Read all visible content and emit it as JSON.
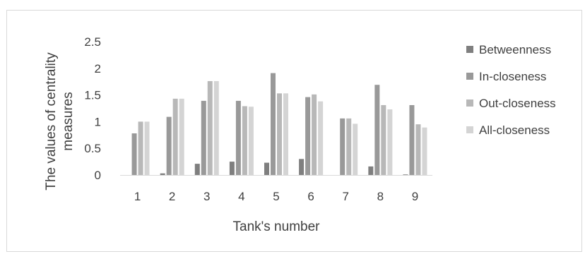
{
  "chart_data": {
    "type": "bar",
    "categories": [
      "1",
      "2",
      "3",
      "4",
      "5",
      "6",
      "7",
      "8",
      "9"
    ],
    "series": [
      {
        "name": "Betweenness",
        "color": "#7f7f7f",
        "values": [
          0,
          0.03,
          0.21,
          0.25,
          0.23,
          0.3,
          0,
          0.16,
          0.01
        ]
      },
      {
        "name": "In-closeness",
        "color": "#999999",
        "values": [
          0.78,
          1.09,
          1.39,
          1.39,
          1.91,
          1.46,
          1.06,
          1.69,
          1.31
        ]
      },
      {
        "name": "Out-closeness",
        "color": "#b8b8b8",
        "values": [
          1.0,
          1.43,
          1.76,
          1.29,
          1.53,
          1.51,
          1.06,
          1.31,
          0.95
        ]
      },
      {
        "name": "All-closeness",
        "color": "#d4d4d4",
        "values": [
          1.0,
          1.43,
          1.76,
          1.28,
          1.53,
          1.38,
          0.96,
          1.23,
          0.89
        ]
      }
    ],
    "xlabel": "Tank's number",
    "ylabel_lines": [
      "The values of centrality",
      "measures"
    ],
    "yticks": [
      "0",
      "0.5",
      "1",
      "1.5",
      "2",
      "2.5"
    ],
    "ylim": [
      0,
      2.5
    ],
    "grid": false,
    "legend_position": "right"
  }
}
